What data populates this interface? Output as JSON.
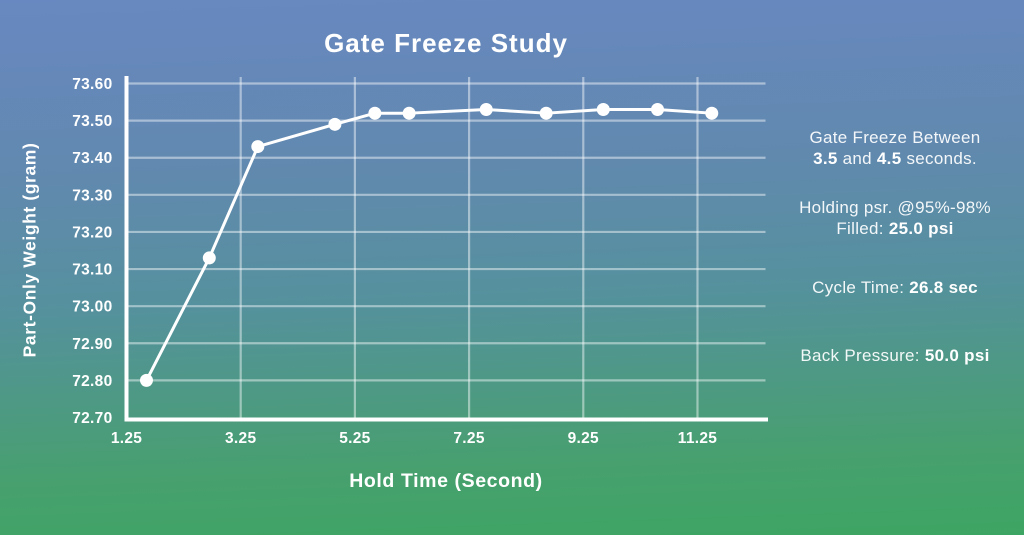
{
  "title": "Gate Freeze Study",
  "colors": {
    "bg_top": "#6888c1",
    "bg_mid": "#55919d",
    "bg_bottom": "#3da563",
    "text": "#ffffff",
    "axis": "#ffffff",
    "grid": "#ffffff",
    "grid_opacity": 0.45,
    "series": "#ffffff"
  },
  "chart_data": {
    "type": "line",
    "title": "Gate Freeze Study",
    "xlabel": "Hold Time (Second)",
    "ylabel": "Part-Only Weight (gram)",
    "xlim": [
      1.25,
      12.45
    ],
    "ylim": [
      72.7,
      73.6
    ],
    "grid": true,
    "legend": false,
    "x_ticks": {
      "values": [
        1.25,
        3.25,
        5.25,
        7.25,
        9.25,
        11.25
      ],
      "labels": [
        "1.25",
        "3.25",
        "5.25",
        "7.25",
        "9.25",
        "11.25"
      ]
    },
    "y_ticks": {
      "values": [
        72.7,
        72.8,
        72.9,
        73.0,
        73.1,
        73.2,
        73.3,
        73.4,
        73.5,
        73.6
      ],
      "labels": [
        "72.70",
        "72.80",
        "72.90",
        "73.00",
        "73.10",
        "73.20",
        "73.30",
        "73.40",
        "73.50",
        "73.60"
      ]
    },
    "x_gridlines": [
      3.25,
      5.25,
      7.25,
      9.25,
      11.25
    ],
    "series": [
      {
        "name": "Part-Only Weight",
        "marker": "circle",
        "color": "#ffffff",
        "x": [
          1.6,
          2.7,
          3.55,
          4.9,
          5.6,
          6.2,
          7.55,
          8.6,
          9.6,
          10.55,
          11.5
        ],
        "y": [
          72.8,
          73.13,
          73.43,
          73.49,
          73.52,
          73.52,
          73.53,
          73.52,
          73.53,
          73.53,
          73.52
        ]
      }
    ]
  },
  "annotations": {
    "gate_freeze": [
      [
        {
          "text": "Gate Freeze Between"
        }
      ],
      [
        {
          "text": "3.5",
          "bold": true
        },
        {
          "text": " and "
        },
        {
          "text": "4.5",
          "bold": true
        },
        {
          "text": " seconds."
        }
      ]
    ],
    "holding_pressure": [
      [
        {
          "text": "Holding psr. @95%-98%"
        }
      ],
      [
        {
          "text": "Filled: "
        },
        {
          "text": "25.0 psi",
          "bold": true
        }
      ]
    ],
    "cycle_time": [
      [
        {
          "text": "Cycle Time: "
        },
        {
          "text": "26.8 sec",
          "bold": true
        }
      ]
    ],
    "back_pressure": [
      [
        {
          "text": "Back Pressure: "
        },
        {
          "text": "50.0 psi",
          "bold": true
        }
      ]
    ]
  }
}
